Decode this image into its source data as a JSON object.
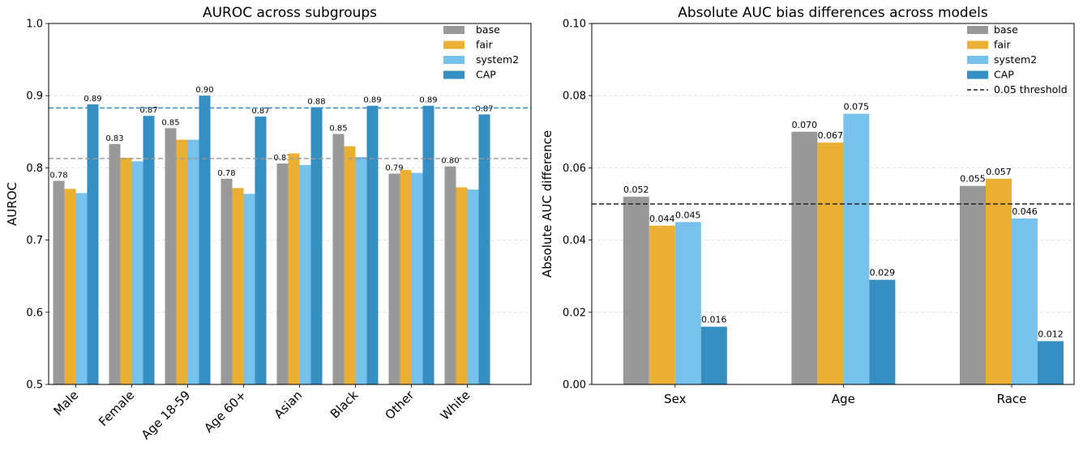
{
  "chart_data": [
    {
      "type": "bar",
      "title": "AUROC across subgroups",
      "xlabel": "",
      "ylabel": "AUROC",
      "ylim": [
        0.5,
        1.0
      ],
      "yticks": [
        "0.5",
        "0.6",
        "0.7",
        "0.8",
        "0.9",
        "1.0"
      ],
      "categories": [
        "Male",
        "Female",
        "Age 18-59",
        "Age 60+",
        "Asian",
        "Black",
        "Other",
        "White"
      ],
      "series": [
        {
          "name": "base",
          "color": "#999999",
          "values": [
            0.782,
            0.833,
            0.855,
            0.785,
            0.806,
            0.847,
            0.792,
            0.802
          ],
          "labels": [
            "0.78",
            "0.83",
            "0.85",
            "0.78",
            "0.81",
            "0.85",
            "0.79",
            "0.80"
          ]
        },
        {
          "name": "fair",
          "color": "#EBB033",
          "values": [
            0.771,
            0.814,
            0.839,
            0.772,
            0.82,
            0.83,
            0.797,
            0.773
          ]
        },
        {
          "name": "system2",
          "color": "#76C2EC",
          "values": [
            0.765,
            0.809,
            0.839,
            0.764,
            0.804,
            0.815,
            0.793,
            0.77
          ]
        },
        {
          "name": "CAP",
          "color": "#358FC2",
          "values": [
            0.888,
            0.872,
            0.9,
            0.871,
            0.884,
            0.886,
            0.886,
            0.874
          ],
          "labels": [
            "0.89",
            "0.87",
            "0.90",
            "0.87",
            "0.88",
            "0.89",
            "0.89",
            "0.87"
          ]
        }
      ],
      "reference_lines": [
        {
          "value": 0.883,
          "color": "#358FC2",
          "style": "dashed"
        },
        {
          "value": 0.813,
          "color": "#999999",
          "style": "dashed"
        }
      ],
      "grid": "horizontal",
      "legend": "top-right"
    },
    {
      "type": "bar",
      "title": "Absolute AUC bias differences across models",
      "xlabel": "",
      "ylabel": "Absolute AUC difference",
      "ylim": [
        0,
        0.1
      ],
      "yticks": [
        "0.00",
        "0.02",
        "0.04",
        "0.06",
        "0.08",
        "0.10"
      ],
      "categories": [
        "Sex",
        "Age",
        "Race"
      ],
      "series": [
        {
          "name": "base",
          "color": "#999999",
          "values": [
            0.052,
            0.07,
            0.055
          ],
          "labels": [
            "0.052",
            "0.070",
            "0.055"
          ]
        },
        {
          "name": "fair",
          "color": "#EBB033",
          "values": [
            0.044,
            0.067,
            0.057
          ],
          "labels": [
            "0.044",
            "0.067",
            "0.057"
          ]
        },
        {
          "name": "system2",
          "color": "#76C2EC",
          "values": [
            0.045,
            0.075,
            0.046
          ],
          "labels": [
            "0.045",
            "0.075",
            "0.046"
          ]
        },
        {
          "name": "CAP",
          "color": "#358FC2",
          "values": [
            0.016,
            0.029,
            0.012
          ],
          "labels": [
            "0.016",
            "0.029",
            "0.012"
          ]
        }
      ],
      "reference_lines": [
        {
          "value": 0.05,
          "color": "#222222",
          "style": "dashed",
          "name": "0.05 threshold"
        }
      ],
      "grid": "horizontal",
      "legend": "top-right"
    }
  ]
}
